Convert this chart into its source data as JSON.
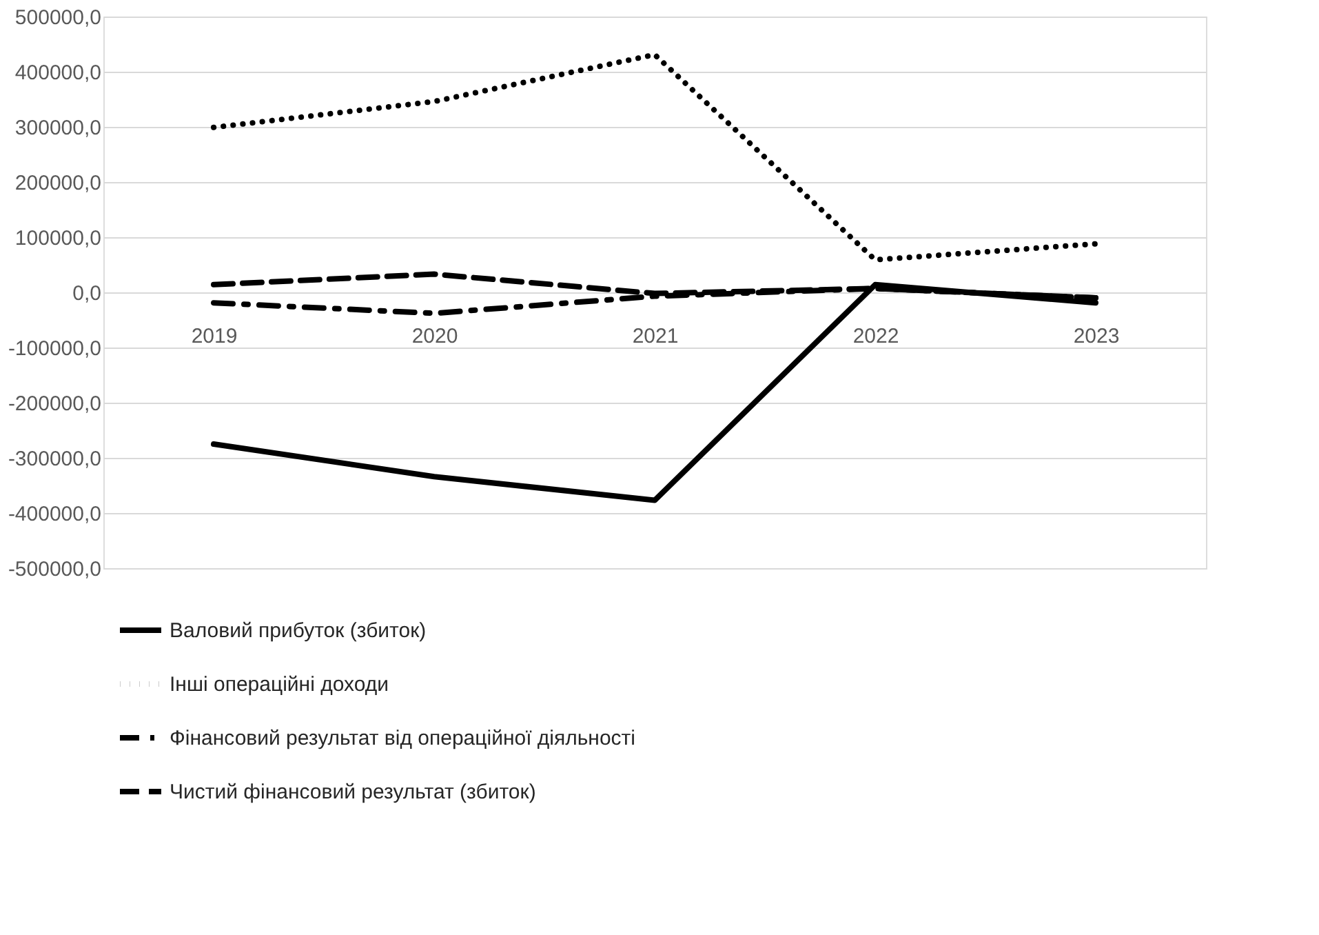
{
  "chart_data": {
    "type": "line",
    "categories": [
      "2019",
      "2020",
      "2021",
      "2022",
      "2023"
    ],
    "series": [
      {
        "name": "Валовий прибуток (збиток)",
        "color": "#000000",
        "line_style": "solid",
        "values": [
          -275000,
          -334000,
          -377000,
          14000,
          -19000
        ]
      },
      {
        "name": "Інші операційні доходи",
        "color": "#000000",
        "line_style": "dotted",
        "values": [
          299000,
          346000,
          431000,
          59000,
          88000
        ]
      },
      {
        "name": "Фінансовий результат від операційної діяльності",
        "color": "#000000",
        "line_style": "dashdot",
        "values": [
          -19000,
          -38000,
          -7000,
          7000,
          -10000
        ]
      },
      {
        "name": "Чистий фінансовий результат (збиток)",
        "color": "#000000",
        "line_style": "dashed",
        "values": [
          14000,
          33000,
          -2000,
          7000,
          -10000
        ]
      }
    ],
    "ylim": [
      -500000,
      500000
    ],
    "yticks": [
      {
        "value": -500000,
        "label": "-500000,0"
      },
      {
        "value": -400000,
        "label": "-400000,0"
      },
      {
        "value": -300000,
        "label": "-300000,0"
      },
      {
        "value": -200000,
        "label": "-200000,0"
      },
      {
        "value": -100000,
        "label": "-100000,0"
      },
      {
        "value": 0,
        "label": "0,0"
      },
      {
        "value": 100000,
        "label": "100000,0"
      },
      {
        "value": 200000,
        "label": "200000,0"
      },
      {
        "value": 300000,
        "label": "300000,0"
      },
      {
        "value": 400000,
        "label": "400000,0"
      },
      {
        "value": 500000,
        "label": "500000,0"
      }
    ],
    "grid": "y",
    "legend": "bottom"
  }
}
